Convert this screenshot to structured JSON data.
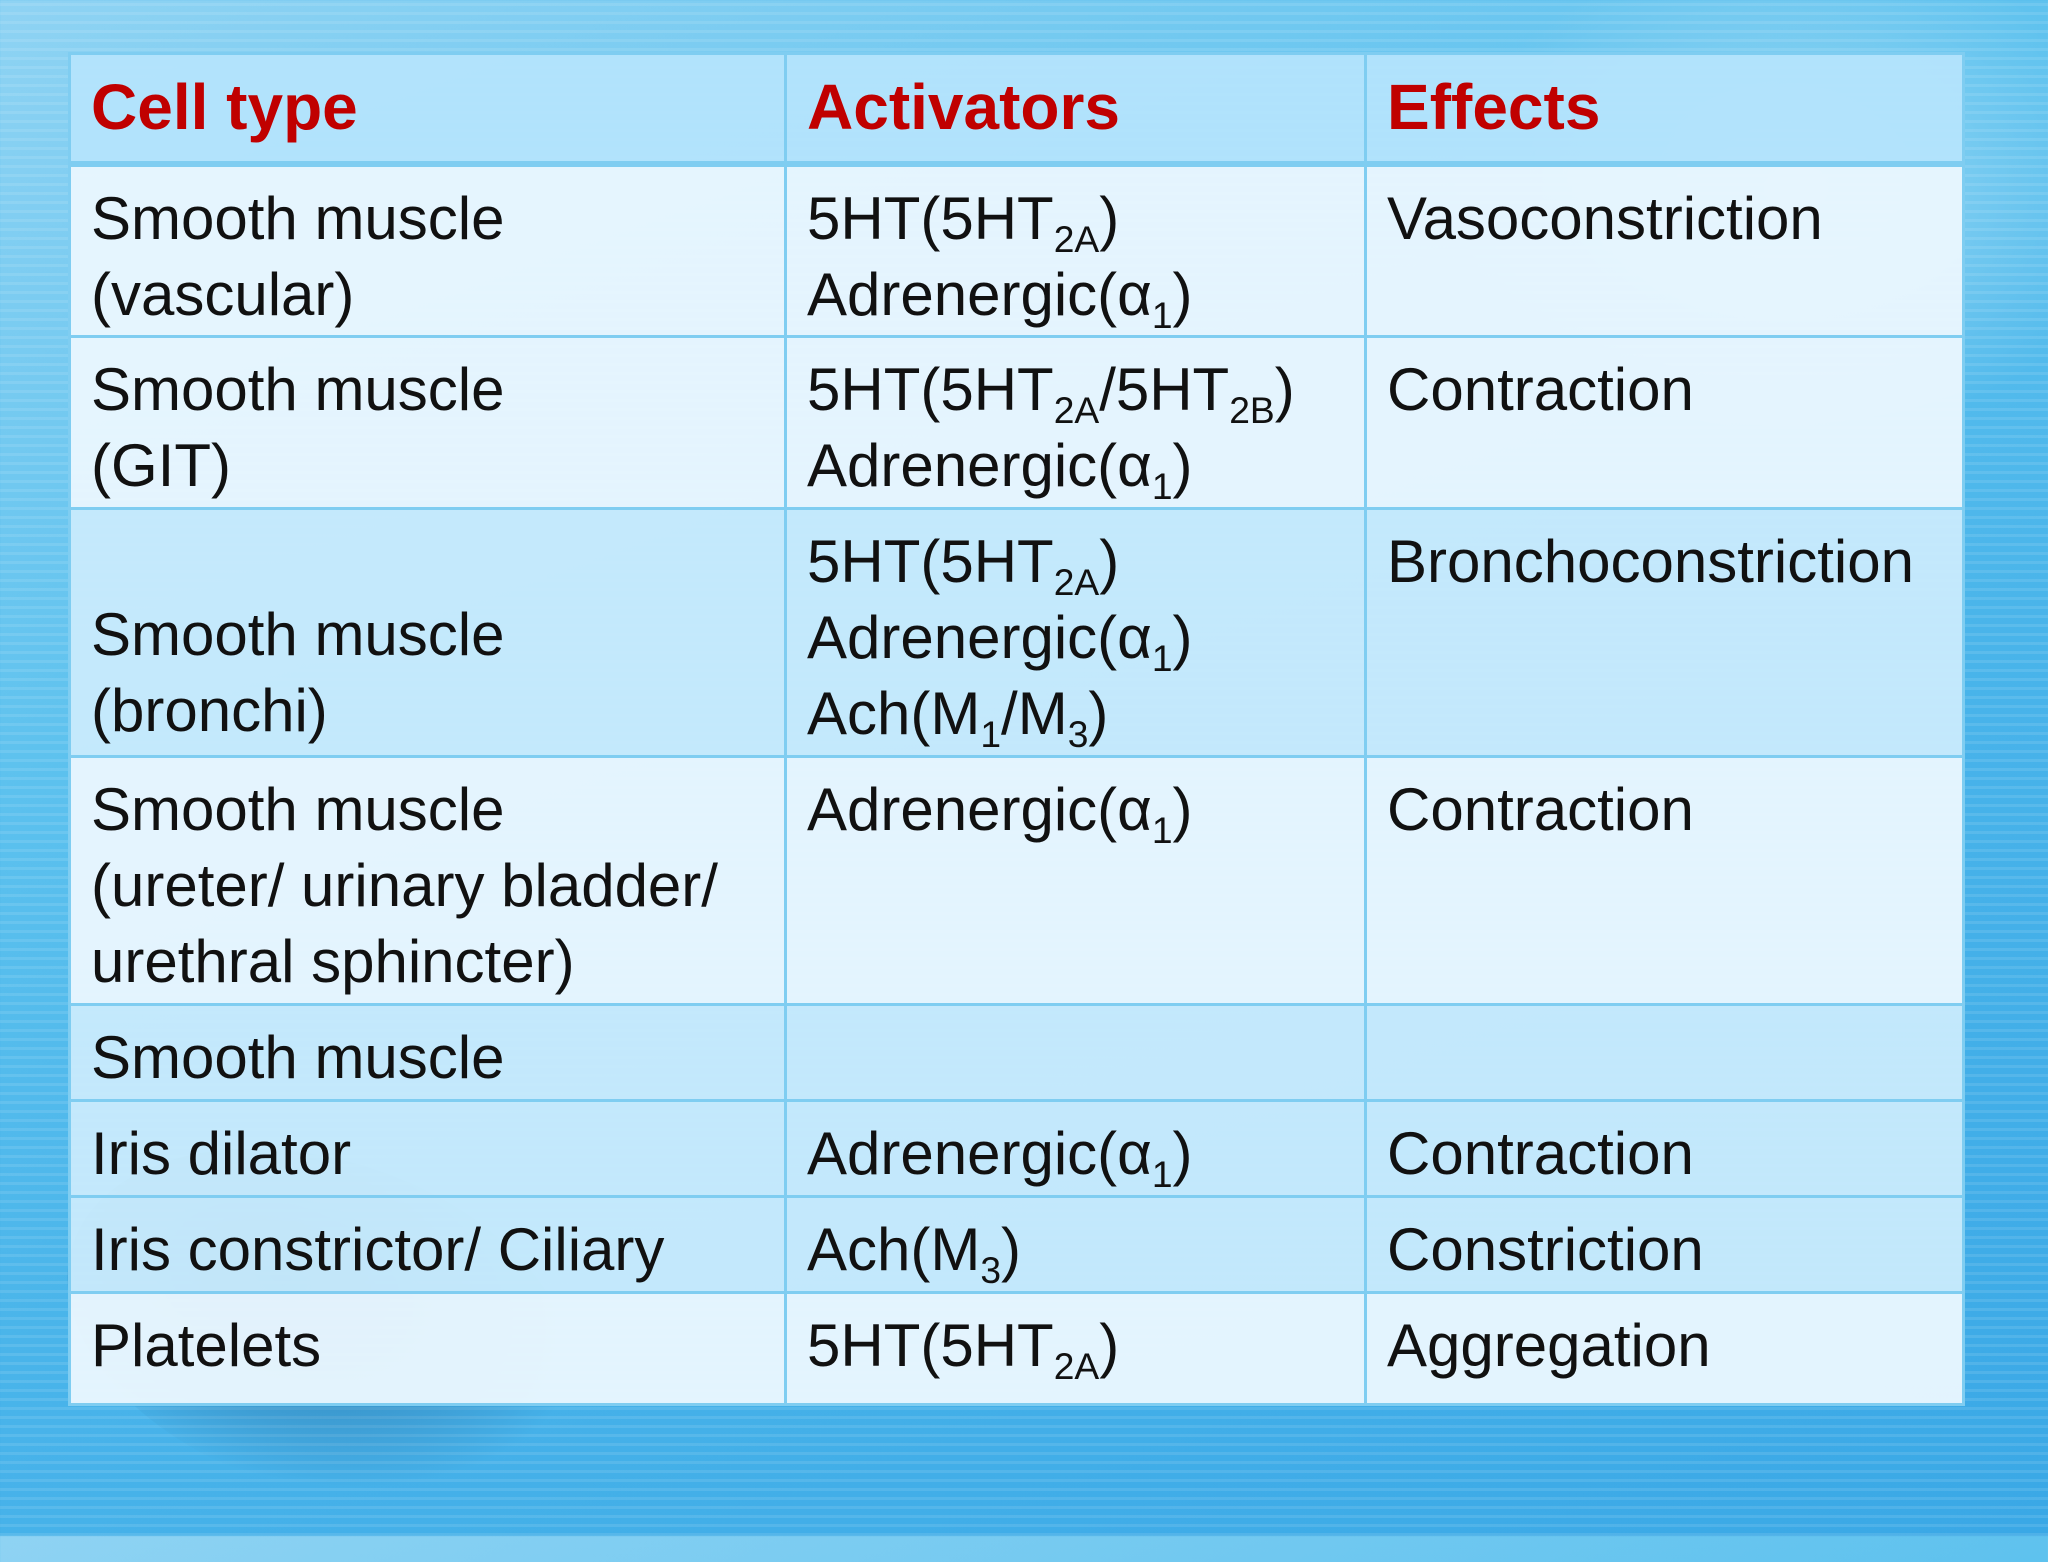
{
  "headers": [
    "Cell type",
    "Activators",
    "Effects"
  ],
  "rows": [
    {
      "cell_type": [
        "Smooth muscle",
        "(vascular)"
      ],
      "activators": [
        [
          {
            "t": "5HT(5HT"
          },
          {
            "sub": "2A"
          },
          {
            "t": ")"
          }
        ],
        [
          {
            "t": "Adrenergic(α"
          },
          {
            "sub": "1"
          },
          {
            "t": ")"
          }
        ]
      ],
      "effects": "Vasoconstriction"
    },
    {
      "cell_type": [
        "Smooth muscle",
        "(GIT)"
      ],
      "activators": [
        [
          {
            "t": "5HT(5HT"
          },
          {
            "sub": "2A"
          },
          {
            "t": "/5HT"
          },
          {
            "sub": "2B"
          },
          {
            "t": ")"
          }
        ],
        [
          {
            "t": "Adrenergic(α"
          },
          {
            "sub": "1"
          },
          {
            "t": ")"
          }
        ]
      ],
      "effects": "Contraction"
    },
    {
      "cell_type": [
        "Smooth muscle",
        "(bronchi)"
      ],
      "cell_align": "bottom",
      "activators": [
        [
          {
            "t": "5HT(5HT"
          },
          {
            "sub": "2A"
          },
          {
            "t": ")"
          }
        ],
        [
          {
            "t": "Adrenergic(α"
          },
          {
            "sub": "1"
          },
          {
            "t": ")"
          }
        ],
        [
          {
            "t": "Ach(M"
          },
          {
            "sub": "1"
          },
          {
            "t": "/M"
          },
          {
            "sub": "3"
          },
          {
            "t": ")"
          }
        ]
      ],
      "effects": "Bronchoconstriction"
    },
    {
      "cell_type": [
        "Smooth muscle",
        "(ureter/ urinary bladder/",
        "urethral sphincter)"
      ],
      "activators": [
        [
          {
            "t": "Adrenergic(α"
          },
          {
            "sub": "1"
          },
          {
            "t": ")"
          }
        ]
      ],
      "effects": "Contraction"
    },
    {
      "cell_type": [
        "Smooth muscle"
      ],
      "activators": [],
      "effects": ""
    },
    {
      "cell_type": [
        "Iris dilator"
      ],
      "activators": [
        [
          {
            "t": "Adrenergic(α"
          },
          {
            "sub": "1"
          },
          {
            "t": ")"
          }
        ]
      ],
      "effects": "Contraction"
    },
    {
      "cell_type": [
        "Iris constrictor/ Ciliary"
      ],
      "activators": [
        [
          {
            "t": "Ach(M"
          },
          {
            "sub": "3"
          },
          {
            "t": ")"
          }
        ]
      ],
      "effects": "Constriction"
    },
    {
      "cell_type": [
        "Platelets"
      ],
      "activators": [
        [
          {
            "t": "5HT(5HT"
          },
          {
            "sub": "2A"
          },
          {
            "t": ")"
          }
        ]
      ],
      "effects": "Aggregation"
    }
  ]
}
